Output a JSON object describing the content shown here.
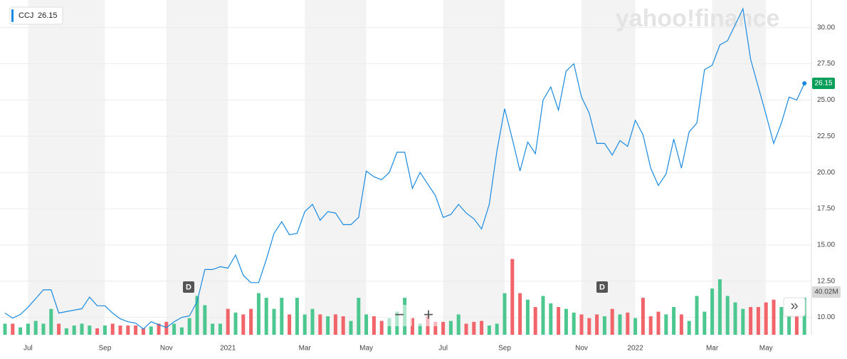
{
  "chart_data": {
    "type": "line",
    "watermark": "yahoo!finance",
    "categories": [
      null,
      null,
      null,
      "Jul",
      null,
      null,
      null,
      null,
      null,
      null,
      null,
      null,
      null,
      "Sep",
      null,
      null,
      null,
      null,
      null,
      null,
      null,
      "Nov",
      null,
      null,
      null,
      null,
      null,
      null,
      null,
      "2021",
      null,
      null,
      null,
      null,
      null,
      null,
      null,
      null,
      null,
      "Mar",
      null,
      null,
      null,
      null,
      null,
      null,
      null,
      "May",
      null,
      null,
      null,
      null,
      null,
      null,
      null,
      null,
      null,
      "Jul",
      null,
      null,
      null,
      null,
      null,
      null,
      null,
      "Sep",
      null,
      null,
      null,
      null,
      null,
      null,
      null,
      null,
      null,
      "Nov",
      null,
      null,
      null,
      null,
      null,
      null,
      "2022",
      null,
      null,
      null,
      null,
      null,
      null,
      null,
      null,
      null,
      "Mar",
      null,
      null,
      null,
      null,
      null,
      null,
      "May",
      null,
      null,
      null,
      null,
      null
    ],
    "series": [
      {
        "name": "CCJ",
        "color": "#1a8ae0",
        "values": [
          10.3,
          9.95,
          10.2,
          10.7,
          11.3,
          11.9,
          11.9,
          10.3,
          10.4,
          10.5,
          10.6,
          11.4,
          10.8,
          10.8,
          10.3,
          9.9,
          9.7,
          9.6,
          9.2,
          9.7,
          9.5,
          9.3,
          9.7,
          10.0,
          10.1,
          11.1,
          13.3,
          13.3,
          13.5,
          13.4,
          14.3,
          12.9,
          12.4,
          12.4,
          14.0,
          15.8,
          16.6,
          15.7,
          15.8,
          17.3,
          17.8,
          16.7,
          17.3,
          17.2,
          16.4,
          16.4,
          16.9,
          20.1,
          19.7,
          19.5,
          20.0,
          21.4,
          21.4,
          18.9,
          20.0,
          19.2,
          18.4,
          16.9,
          17.1,
          17.8,
          17.2,
          16.8,
          16.1,
          17.8,
          21.5,
          24.4,
          22.3,
          20.1,
          22.1,
          21.3,
          25.0,
          25.9,
          24.3,
          27.0,
          27.5,
          25.2,
          24.1,
          22.0,
          22.0,
          21.2,
          22.2,
          21.8,
          23.6,
          22.6,
          20.3,
          19.1,
          19.9,
          22.3,
          20.3,
          22.8,
          23.4,
          27.1,
          27.4,
          28.8,
          29.1,
          30.2,
          31.3,
          27.8,
          25.9,
          24.0,
          22.0,
          23.4,
          25.2,
          25.0,
          26.15
        ]
      },
      {
        "name": "Volume",
        "axis": "y2",
        "up_color": "#4cc790",
        "down_color": "#f0646a",
        "values": [
          12,
          12,
          8,
          12,
          15,
          12,
          28,
          12,
          7,
          10,
          12,
          10,
          7,
          10,
          12,
          10,
          10,
          10,
          7,
          9,
          12,
          14,
          12,
          8,
          18,
          42,
          32,
          12,
          12,
          28,
          24,
          22,
          28,
          45,
          40,
          28,
          40,
          22,
          40,
          22,
          28,
          22,
          20,
          22,
          20,
          15,
          40,
          22,
          20,
          15,
          18,
          25,
          40,
          18,
          12,
          20,
          14,
          14,
          15,
          22,
          12,
          14,
          15,
          10,
          12,
          45,
          82,
          45,
          38,
          30,
          42,
          34,
          30,
          28,
          24,
          22,
          18,
          22,
          20,
          28,
          22,
          24,
          18,
          40,
          20,
          25,
          22,
          30,
          22,
          15,
          42,
          25,
          50,
          60,
          42,
          35,
          28,
          30,
          30,
          35,
          38,
          30,
          20,
          20,
          40.02
        ],
        "value_labels": [
          null,
          null,
          null,
          null,
          null,
          null,
          null,
          null,
          null,
          null,
          null,
          null,
          null,
          null,
          null,
          null,
          null,
          null,
          null,
          null,
          null,
          null,
          null,
          null,
          null,
          null,
          null,
          null,
          null,
          null,
          null,
          null,
          null,
          null,
          null,
          null,
          null,
          null,
          null,
          null,
          null,
          null,
          null,
          null,
          null,
          null,
          null,
          null,
          null,
          null,
          null,
          null,
          null,
          null,
          null,
          null,
          null,
          null,
          null,
          null,
          null,
          null,
          null,
          null,
          null,
          null,
          null,
          null,
          null,
          null,
          null,
          null,
          null,
          null,
          null,
          null,
          null,
          null,
          null,
          null,
          null,
          null,
          null,
          null,
          null,
          null,
          null,
          null,
          null,
          null,
          null,
          null,
          null,
          null,
          null,
          null,
          null,
          null,
          null,
          null,
          null,
          null,
          null,
          null,
          "40.02M"
        ]
      }
    ],
    "ylim": [
      8.8,
      31.9
    ],
    "yticks": [
      {
        "value": 10,
        "label": "10.00"
      },
      {
        "value": 12.5,
        "label": "12.50"
      },
      {
        "value": 15,
        "label": "15.00"
      },
      {
        "value": 17.5,
        "label": "17.50"
      },
      {
        "value": 20,
        "label": "20.00"
      },
      {
        "value": 22.5,
        "label": "22.50"
      },
      {
        "value": 25,
        "label": "25.00"
      },
      {
        "value": 27.5,
        "label": "27.50"
      },
      {
        "value": 30,
        "label": "30.00"
      }
    ],
    "y2lim": [
      0,
      362
    ],
    "grid": true,
    "dividend_markers": [
      "D",
      "D"
    ],
    "controls": [
      "−",
      "+",
      "»"
    ]
  }
}
